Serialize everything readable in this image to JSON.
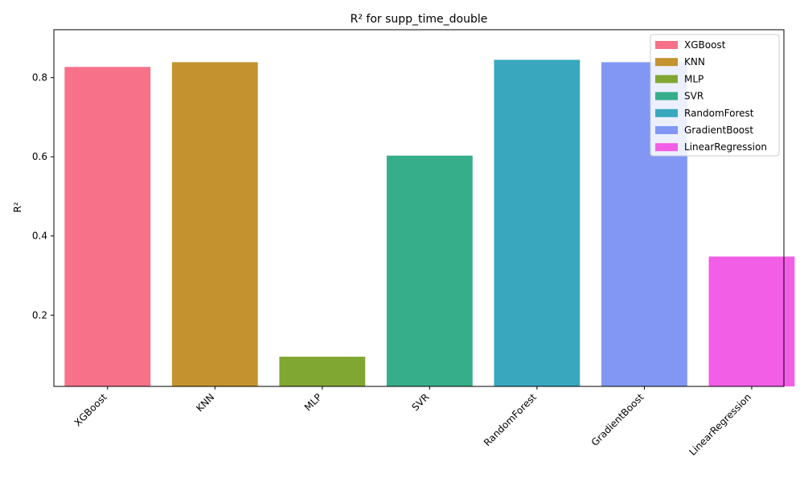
{
  "chart_data": {
    "type": "bar",
    "title": "R² for supp_time_double",
    "xlabel": "",
    "ylabel": "R²",
    "categories": [
      "XGBoost",
      "KNN",
      "MLP",
      "SVR",
      "RandomForest",
      "GradientBoost",
      "LinearRegression"
    ],
    "values": [
      0.827,
      0.839,
      0.095,
      0.603,
      0.845,
      0.839,
      0.348
    ],
    "colors": [
      "#f77189",
      "#c4932f",
      "#81a733",
      "#36ae8a",
      "#39a8be",
      "#8297f4",
      "#f35ee6"
    ],
    "ylim": [
      0.02,
      0.921
    ],
    "yticks": [
      "0.2",
      "0.4",
      "0.6",
      "0.8"
    ],
    "legend": {
      "placement": "top-right",
      "entries": [
        "XGBoost",
        "KNN",
        "MLP",
        "SVR",
        "RandomForest",
        "GradientBoost",
        "LinearRegression"
      ]
    },
    "grid": false
  }
}
